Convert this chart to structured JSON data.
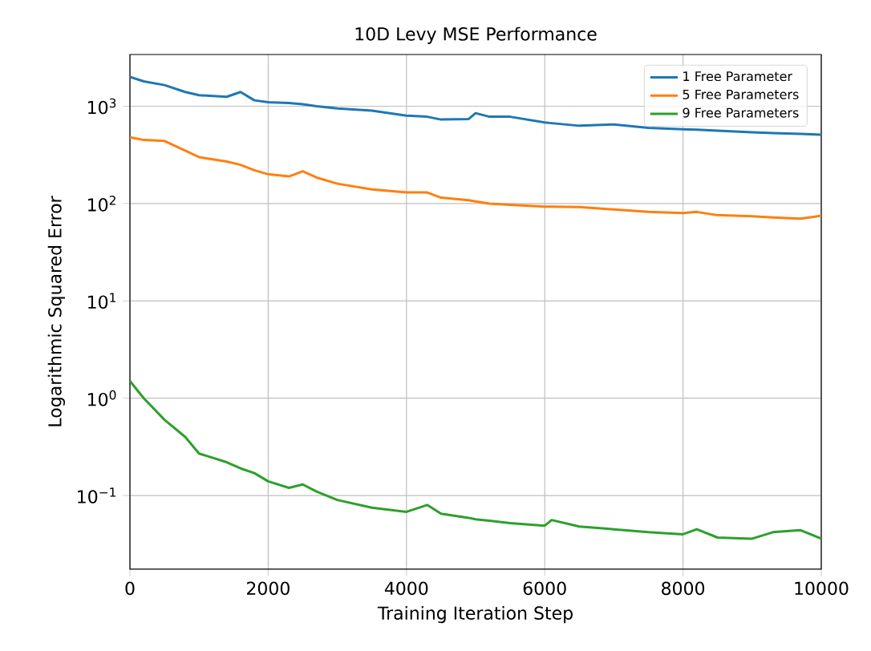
{
  "chart_data": {
    "type": "line",
    "title": "10D Levy MSE Performance",
    "xlabel": "Training Iteration Step",
    "ylabel": "Logarithmic Squared Error",
    "x": [
      0,
      200,
      500,
      800,
      1000,
      1400,
      1600,
      1800,
      2000,
      2300,
      2500,
      2700,
      3000,
      3500,
      4000,
      4300,
      4500,
      4900,
      5000,
      5200,
      5500,
      6000,
      6100,
      6500,
      7000,
      7500,
      8000,
      8200,
      8500,
      9000,
      9300,
      9700,
      10000
    ],
    "series": [
      {
        "name": "1 Free Parameter",
        "color": "#1f77b4",
        "values": [
          2000,
          1800,
          1650,
          1400,
          1300,
          1250,
          1400,
          1150,
          1100,
          1080,
          1050,
          1000,
          950,
          900,
          800,
          780,
          730,
          740,
          850,
          780,
          780,
          680,
          670,
          630,
          650,
          600,
          580,
          575,
          560,
          540,
          530,
          520,
          510
        ]
      },
      {
        "name": "5 Free Parameters",
        "color": "#ff7f0e",
        "values": [
          480,
          450,
          440,
          350,
          300,
          270,
          250,
          220,
          200,
          190,
          215,
          185,
          160,
          140,
          130,
          130,
          115,
          108,
          105,
          100,
          97,
          93,
          93,
          92,
          87,
          82,
          80,
          82,
          76,
          74,
          72,
          70,
          75
        ]
      },
      {
        "name": "9 Free Parameters",
        "color": "#2ca02c",
        "values": [
          1.5,
          1.0,
          0.6,
          0.4,
          0.27,
          0.22,
          0.19,
          0.17,
          0.14,
          0.12,
          0.13,
          0.11,
          0.09,
          0.075,
          0.068,
          0.08,
          0.065,
          0.059,
          0.057,
          0.055,
          0.052,
          0.049,
          0.056,
          0.048,
          0.045,
          0.042,
          0.04,
          0.045,
          0.037,
          0.036,
          0.042,
          0.044,
          0.036
        ]
      }
    ],
    "log": "y",
    "xlim": [
      0,
      10000
    ],
    "ylim": [
      0.0175,
      3400
    ],
    "xticks": [
      0,
      2000,
      4000,
      6000,
      8000,
      10000
    ],
    "yticks": [
      {
        "value": 0.1,
        "label": "10$^{−1}$"
      },
      {
        "value": 1,
        "label": "10$^{0}$"
      },
      {
        "value": 10,
        "label": "10$^{1}$"
      },
      {
        "value": 100,
        "label": "10$^{2}$"
      },
      {
        "value": 1000,
        "label": "10$^{3}$"
      }
    ],
    "grid": true,
    "legend": "top right",
    "marker": "none",
    "line_style": "solid"
  }
}
